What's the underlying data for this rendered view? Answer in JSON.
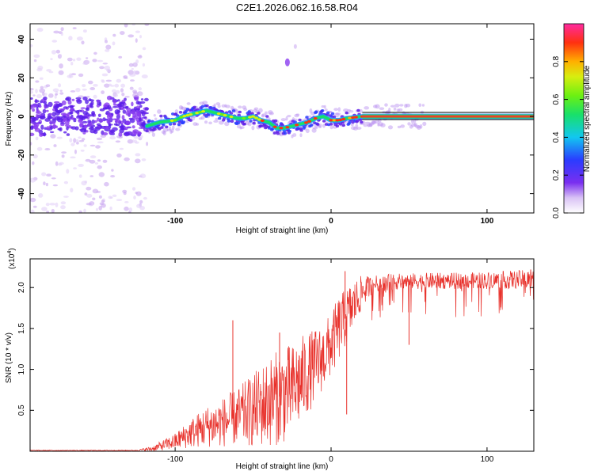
{
  "title": "C2E1.2026.062.16.58.R04",
  "chart_data": [
    {
      "type": "heatmap",
      "name": "spectrogram",
      "xlabel": "Height of straight line (km)",
      "ylabel": "Frequency (Hz)",
      "xlim": [
        -193,
        130
      ],
      "ylim": [
        -50,
        48
      ],
      "x_ticks": [
        -100,
        0,
        100
      ],
      "x_tick_labels": [
        "-100",
        "0",
        "100"
      ],
      "y_ticks": [
        -40,
        -20,
        0,
        20,
        40
      ],
      "y_tick_labels": [
        "-40",
        "-20",
        "0",
        "20",
        "40"
      ],
      "center_track": {
        "x": [
          -118,
          -110,
          -100,
          -95,
          -90,
          -85,
          -80,
          -75,
          -70,
          -65,
          -60,
          -55,
          -50,
          -45,
          -40,
          -35,
          -30,
          -25,
          -20,
          -15,
          -10,
          -5,
          0,
          5,
          10,
          20,
          40,
          60,
          80,
          100,
          130
        ],
        "y": [
          -5,
          -3,
          -2,
          0,
          1,
          2,
          3,
          2,
          1,
          0,
          -1,
          -1,
          0,
          -2,
          -3,
          -6,
          -6,
          -5,
          -4,
          -3,
          -1,
          0,
          -2,
          -2,
          -1,
          0,
          0,
          0,
          0,
          0,
          0
        ]
      },
      "noise_region_x": [
        -193,
        -118
      ],
      "noise_blob": {
        "x": -28,
        "y": 28
      },
      "colorbar": {
        "label": "Normalized spectral amplitude",
        "range": [
          0,
          1
        ],
        "ticks": [
          0.0,
          0.2,
          0.4,
          0.6,
          0.8
        ],
        "tick_labels": [
          "0.0",
          "0.2",
          "0.4",
          "0.6",
          "0.8"
        ]
      }
    },
    {
      "type": "line",
      "name": "snr",
      "xlabel": "Height of straight line (km)",
      "ylabel": "SNR (10 * v/v)",
      "scale_label": "(x10",
      "scale_exponent": "4",
      "scale_close": ")",
      "xlim": [
        -193,
        130
      ],
      "ylim": [
        0,
        2.35
      ],
      "x_ticks": [
        -100,
        0,
        100
      ],
      "x_tick_labels": [
        "-100",
        "0",
        "100"
      ],
      "y_ticks": [
        0.5,
        1.0,
        1.5,
        2.0
      ],
      "y_tick_labels": [
        "0.5",
        "1.0",
        "1.5",
        "2.0"
      ],
      "color": "#e8322c",
      "envelope": {
        "x": [
          -193,
          -125,
          -115,
          -100,
          -90,
          -80,
          -70,
          -60,
          -50,
          -40,
          -30,
          -25,
          -20,
          -15,
          -10,
          -5,
          0,
          5,
          10,
          15,
          20,
          25,
          30,
          40,
          60,
          80,
          100,
          130
        ],
        "y_mid": [
          0.01,
          0.01,
          0.03,
          0.12,
          0.22,
          0.3,
          0.35,
          0.42,
          0.5,
          0.6,
          0.7,
          0.75,
          0.85,
          0.95,
          1.05,
          1.15,
          1.3,
          1.5,
          1.65,
          1.8,
          1.95,
          2.02,
          2.05,
          2.07,
          2.08,
          2.08,
          2.09,
          2.1
        ],
        "y_spread": [
          0.005,
          0.005,
          0.03,
          0.1,
          0.18,
          0.25,
          0.3,
          0.35,
          0.45,
          0.55,
          0.6,
          0.55,
          0.55,
          0.5,
          0.45,
          0.4,
          0.4,
          0.4,
          0.35,
          0.3,
          0.2,
          0.12,
          0.1,
          0.1,
          0.1,
          0.1,
          0.1,
          0.12
        ]
      },
      "spikes": [
        {
          "x": 9,
          "y": 2.2
        },
        {
          "x": 10,
          "y": 0.45
        },
        {
          "x": -63,
          "y": 1.6
        },
        {
          "x": 128,
          "y": 2.22
        },
        {
          "x": 50,
          "y": 1.3
        },
        {
          "x": -33,
          "y": 1.45
        }
      ]
    }
  ]
}
